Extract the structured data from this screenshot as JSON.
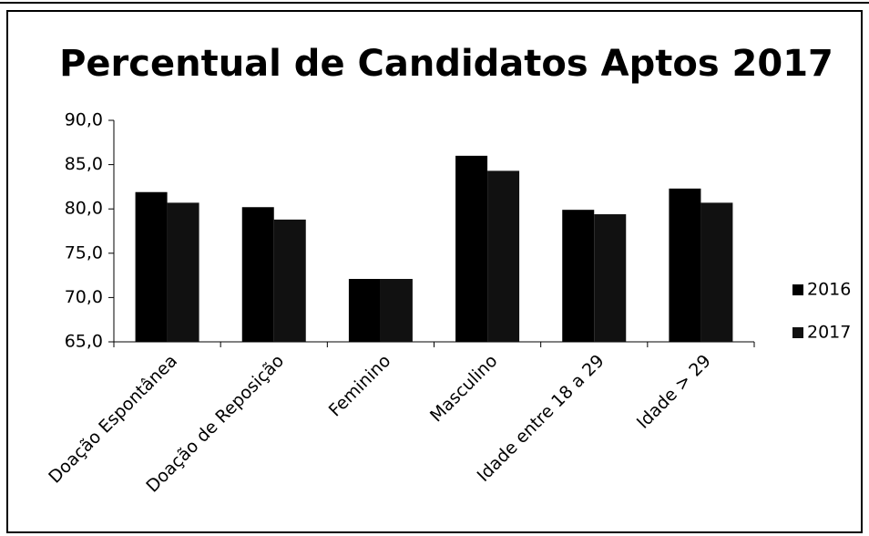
{
  "chart_data": {
    "type": "bar",
    "title": "Percentual de Candidatos Aptos 2017",
    "categories": [
      "Doação Espontânea",
      "Doação de Reposição",
      "Feminino",
      "Masculino",
      "Idade entre 18 a 29",
      "Idade > 29"
    ],
    "series": [
      {
        "name": "2016",
        "color": "#000000",
        "values": [
          81.9,
          80.2,
          72.1,
          86.0,
          79.9,
          82.3
        ]
      },
      {
        "name": "2017",
        "color": "#111111",
        "values": [
          80.7,
          78.8,
          72.1,
          84.3,
          79.4,
          80.7
        ]
      }
    ],
    "ylim": [
      65,
      90
    ],
    "yticks": [
      {
        "value": 65,
        "label": "65,0"
      },
      {
        "value": 70,
        "label": "70,0"
      },
      {
        "value": 75,
        "label": "75,0"
      },
      {
        "value": 80,
        "label": "80,0"
      },
      {
        "value": 85,
        "label": "85,0"
      },
      {
        "value": 90,
        "label": "90,0"
      }
    ],
    "legend": "right"
  }
}
